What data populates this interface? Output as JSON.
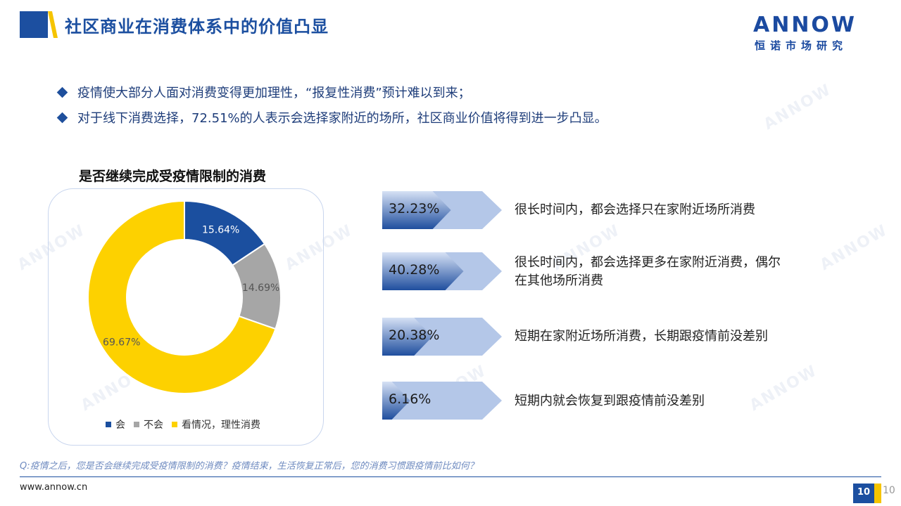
{
  "header": {
    "title": "社区商业在消费体系中的价值凸显",
    "brand_colors": {
      "blue": "#1c4fa0",
      "yellow": "#f5c400"
    }
  },
  "logo": {
    "word": "ANNOW",
    "sub": "恒诺市场研究"
  },
  "bullets": [
    "疫情使大部分人面对消费变得更加理性，“报复性消费”预计难以到来；",
    "对于线下消费选择，72.51%的人表示会选择家附近的场所，社区商业价值将得到进一步凸显。"
  ],
  "chart_data": [
    {
      "type": "pie",
      "subtype": "donut",
      "title": "是否继续完成受疫情限制的消费",
      "categories": [
        "会",
        "不会",
        "看情况，理性消费"
      ],
      "values": [
        15.64,
        14.69,
        69.67
      ],
      "labels": [
        "15.64%",
        "14.69%",
        "69.67%"
      ],
      "colors": [
        "#1b4f9f",
        "#a6a6a6",
        "#fdd100"
      ],
      "legend": "bottom"
    },
    {
      "type": "bar",
      "subtype": "arrow-callouts",
      "categories": [
        "很长时间内，都会选择只在家附近场所消费",
        "很长时间内，都会选择更多在家附近消费，偶尔在其他场所消费",
        "短期在家附近场所消费，长期跟疫情前没差别",
        "短期内就会恢复到跟疫情前没差别"
      ],
      "values": [
        32.23,
        40.28,
        20.38,
        6.16
      ],
      "labels": [
        "32.23%",
        "40.28%",
        "20.38%",
        "6.16%"
      ]
    }
  ],
  "footer": {
    "question": "Q:疫情之后，您是否会继续完成受疫情限制的消费？疫情结束，生活恢复正常后，您的消费习惯跟疫情前比如何？",
    "url": "www.annow.cn",
    "page": "10"
  }
}
